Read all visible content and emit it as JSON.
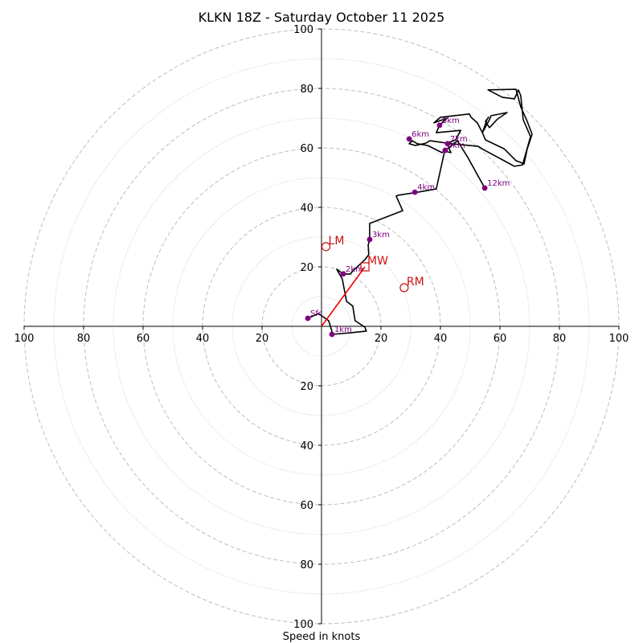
{
  "chart_data": {
    "type": "hodograph",
    "title": "KLKN 18Z - Saturday October 11 2025",
    "xlabel": "Speed in knots",
    "units": "knots",
    "range": [
      -100,
      100
    ],
    "ring_major": [
      20,
      40,
      60,
      80,
      100
    ],
    "ring_minor": [
      10,
      30,
      50,
      70,
      90
    ],
    "tick_labels": {
      "x": [
        {
          "value": -100,
          "label": "100"
        },
        {
          "value": -80,
          "label": "80"
        },
        {
          "value": -60,
          "label": "60"
        },
        {
          "value": -40,
          "label": "40"
        },
        {
          "value": -20,
          "label": "20"
        },
        {
          "value": 20,
          "label": "20"
        },
        {
          "value": 40,
          "label": "40"
        },
        {
          "value": 60,
          "label": "60"
        },
        {
          "value": 80,
          "label": "80"
        },
        {
          "value": 100,
          "label": "100"
        }
      ],
      "y": [
        {
          "value": 100,
          "label": "100"
        },
        {
          "value": 80,
          "label": "80"
        },
        {
          "value": 60,
          "label": "60"
        },
        {
          "value": 40,
          "label": "40"
        },
        {
          "value": 20,
          "label": "20"
        },
        {
          "value": -20,
          "label": "20"
        },
        {
          "value": -40,
          "label": "40"
        },
        {
          "value": -60,
          "label": "60"
        },
        {
          "value": -80,
          "label": "80"
        },
        {
          "value": -100,
          "label": "100"
        }
      ]
    },
    "trace_color": "#000000",
    "trace": [
      [
        -4.6,
        2.7
      ],
      [
        -1,
        4.3
      ],
      [
        2.4,
        1.9
      ],
      [
        3.5,
        -1.6
      ],
      [
        3.5,
        -2.7
      ],
      [
        9.7,
        -2.2
      ],
      [
        15.1,
        -1.6
      ],
      [
        14.6,
        -0.3
      ],
      [
        11.3,
        1.9
      ],
      [
        10.5,
        6.8
      ],
      [
        8.4,
        8.4
      ],
      [
        7.0,
        15.9
      ],
      [
        5.1,
        19.2
      ],
      [
        7.3,
        17.6
      ],
      [
        9.7,
        17.6
      ],
      [
        10.5,
        18.6
      ],
      [
        14.6,
        22.4
      ],
      [
        15.9,
        24.1
      ],
      [
        15.7,
        27.3
      ],
      [
        16.2,
        29.2
      ],
      [
        16.2,
        34.6
      ],
      [
        27.3,
        38.9
      ],
      [
        25.1,
        43.8
      ],
      [
        25.9,
        44.1
      ],
      [
        32.4,
        45.1
      ],
      [
        38.6,
        46.2
      ],
      [
        41.4,
        58.9
      ],
      [
        43.5,
        58.4
      ],
      [
        42.2,
        61.6
      ],
      [
        45.1,
        62.7
      ],
      [
        46.8,
        65.9
      ],
      [
        38.6,
        65.1
      ],
      [
        39.7,
        67.6
      ],
      [
        42.2,
        70.0
      ],
      [
        37.8,
        68.4
      ],
      [
        40.0,
        70.3
      ],
      [
        49.7,
        71.4
      ],
      [
        50.3,
        70.3
      ],
      [
        52.4,
        68.4
      ],
      [
        54.1,
        65.1
      ],
      [
        55.7,
        69.7
      ],
      [
        56.2,
        70.3
      ],
      [
        55.1,
        68.9
      ],
      [
        56.5,
        66.8
      ],
      [
        59.2,
        69.7
      ],
      [
        62.4,
        71.9
      ],
      [
        57.0,
        70.8
      ],
      [
        56.5,
        69.5
      ],
      [
        54.1,
        65.1
      ],
      [
        55.1,
        62.7
      ],
      [
        61.4,
        59.7
      ],
      [
        65.4,
        55.7
      ],
      [
        67.0,
        55.1
      ],
      [
        68.1,
        54.6
      ],
      [
        69.2,
        59.7
      ],
      [
        70.8,
        64.6
      ],
      [
        69.2,
        68.9
      ],
      [
        67.0,
        73.8
      ],
      [
        65.4,
        79.7
      ],
      [
        56.0,
        79.5
      ],
      [
        60.8,
        77.0
      ],
      [
        64.9,
        76.5
      ],
      [
        66.2,
        79.5
      ],
      [
        67.0,
        77.6
      ],
      [
        67.8,
        69.5
      ],
      [
        70.3,
        63.8
      ],
      [
        67.6,
        54.3
      ],
      [
        64.9,
        53.8
      ],
      [
        54.3,
        59.5
      ],
      [
        52.7,
        60.5
      ],
      [
        43.5,
        61.4
      ],
      [
        36.5,
        62.4
      ],
      [
        35.1,
        61.6
      ],
      [
        31.6,
        60.8
      ],
      [
        29.5,
        61.4
      ],
      [
        30.5,
        62.4
      ],
      [
        32.2,
        61.4
      ],
      [
        35.7,
        60.8
      ],
      [
        40.5,
        58.4
      ],
      [
        43.2,
        60.3
      ],
      [
        45.7,
        62.4
      ],
      [
        49.2,
        56.8
      ],
      [
        54.9,
        46.5
      ]
    ],
    "height_markers": [
      {
        "label": "Sfc",
        "u": -4.6,
        "v": 2.7
      },
      {
        "label": "1km",
        "u": 3.5,
        "v": -2.7
      },
      {
        "label": "2km",
        "u": 7.3,
        "v": 17.6
      },
      {
        "label": "3km",
        "u": 16.2,
        "v": 29.2
      },
      {
        "label": "4km",
        "u": 31.4,
        "v": 45.1
      },
      {
        "label": "5km",
        "u": 41.6,
        "v": 59.2
      },
      {
        "label": "6km",
        "u": 29.5,
        "v": 63.0
      },
      {
        "label": "7km",
        "u": 42.4,
        "v": 61.4
      },
      {
        "label": "8km",
        "u": 39.7,
        "v": 67.6
      },
      {
        "label": "12km",
        "u": 54.9,
        "v": 46.5
      }
    ],
    "marker_color": "#800080",
    "motion_color": "#cc1111",
    "motions": [
      {
        "label": "LM",
        "shape": "circle",
        "u": 1.5,
        "v": 26.8
      },
      {
        "label": "MW",
        "shape": "square",
        "u": 14.6,
        "v": 20.0
      },
      {
        "label": "RM",
        "shape": "circle",
        "u": 27.8,
        "v": 13.0
      }
    ],
    "mean_wind_vector": {
      "from": [
        0,
        0
      ],
      "to": [
        14.6,
        20.0
      ]
    }
  }
}
